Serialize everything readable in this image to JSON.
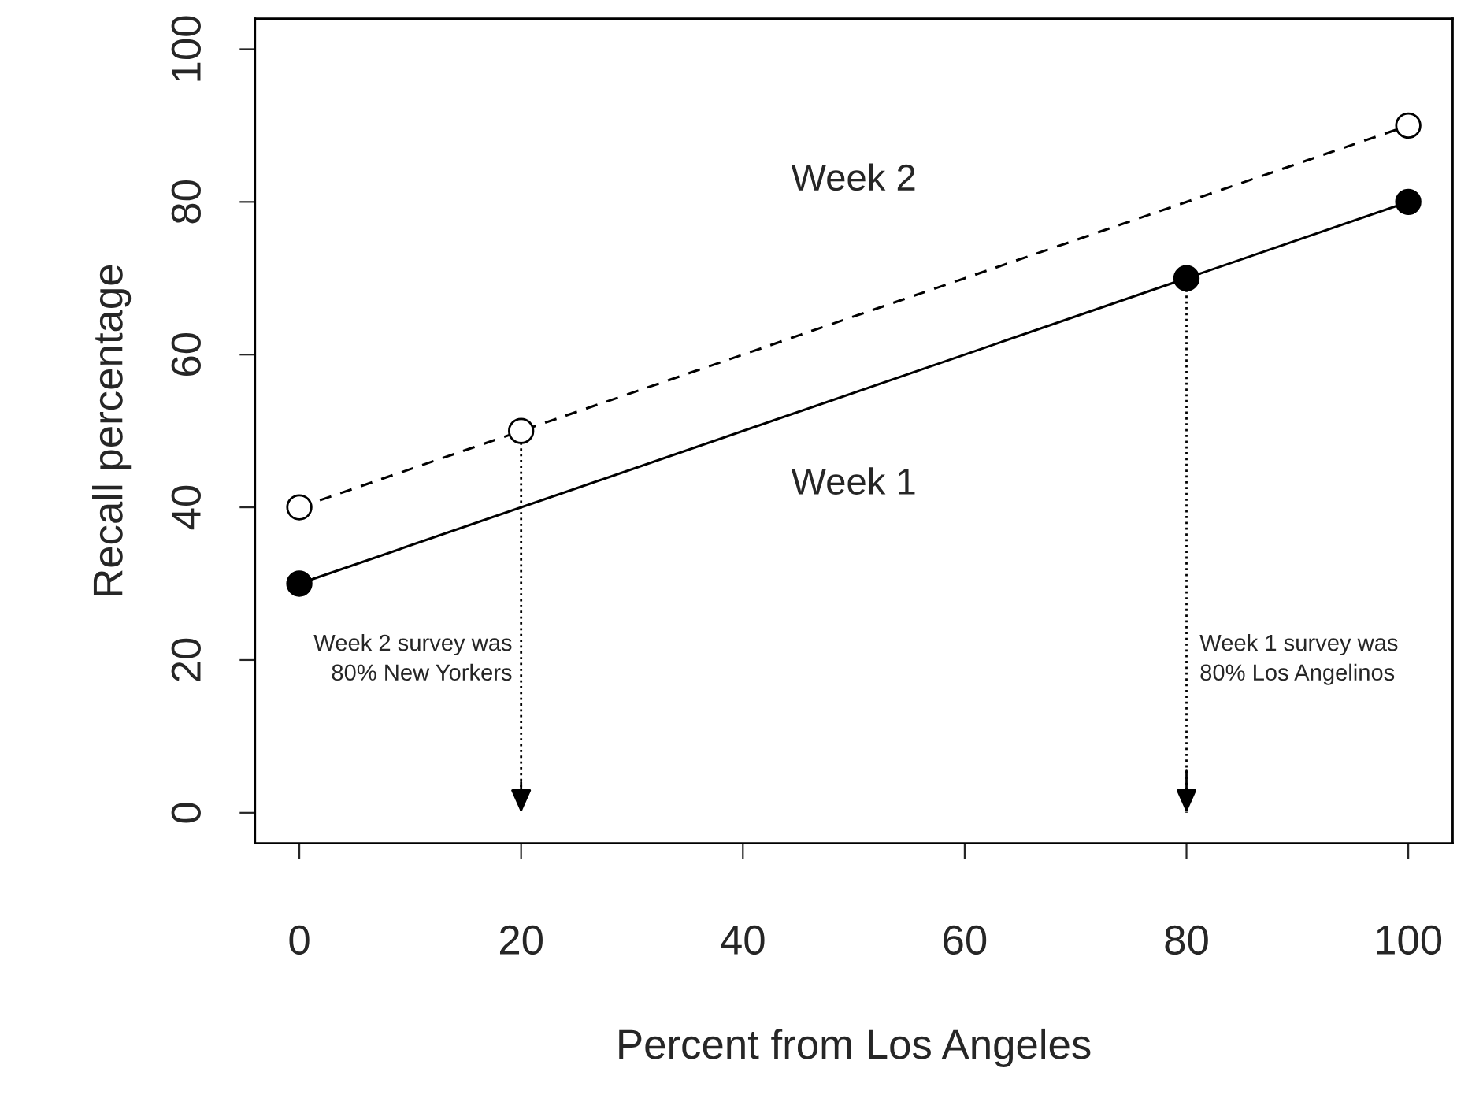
{
  "chart_data": {
    "type": "line",
    "xlabel": "Percent from Los Angeles",
    "ylabel": "Recall percentage",
    "series": [
      {
        "name": "Week 1",
        "color": "#000000",
        "x": [
          0,
          80,
          100
        ],
        "values": [
          30,
          70,
          80
        ],
        "line_style": "solid",
        "marker": "circle"
      },
      {
        "name": "Week 2",
        "color": "#000000",
        "x": [
          0,
          20,
          100
        ],
        "values": [
          40,
          50,
          90
        ],
        "line_style": "dashed",
        "marker": "circle"
      }
    ],
    "ref_lines": [
      {
        "axis": "x",
        "value": 20,
        "label": "Week 2 survey was\n80% New Yorkers",
        "line_style": "dotted"
      },
      {
        "axis": "x",
        "value": 80,
        "label": "Week 1 survey was\n80% Los Angelinos",
        "line_style": "dotted"
      }
    ],
    "xlim": [
      -4,
      104
    ],
    "ylim": [
      -4,
      104
    ],
    "xticks": [
      0,
      20,
      40,
      60,
      80,
      100
    ],
    "yticks": [
      0,
      20,
      40,
      60,
      80,
      100
    ],
    "grid": false,
    "legend": false
  }
}
